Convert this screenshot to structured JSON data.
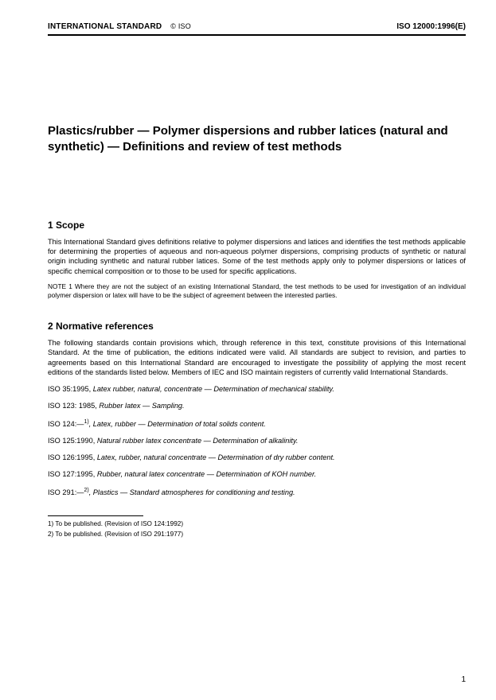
{
  "header": {
    "left": "INTERNATIONAL STANDARD",
    "copyright": "© ISO",
    "right": "ISO 12000:1996(E)"
  },
  "title": "Plastics/rubber — Polymer dispersions and rubber latices (natural and synthetic) — Definitions and review of test methods",
  "sections": {
    "scope": {
      "heading": "1   Scope",
      "para": "This International Standard gives definitions relative to polymer dispersions and latices and identifies the test methods applicable for determining the properties of aqueous and non-aqueous polymer dispersions, comprising products of synthetic or natural origin including synthetic and natural rubber latices. Some of the test methods apply only to polymer dispersions or latices of specific chemical composition or to those to be used for specific applications.",
      "note": "NOTE 1   Where they are not the subject of an existing International Standard, the test methods to be used for investigation of an individual polymer dispersion or latex will have to be the subject of agreement between the interested parties."
    },
    "normrefs": {
      "heading": "2   Normative references",
      "para": "The following standards contain provisions which, through reference in this text, constitute provisions of this International Standard. At the time of publication, the editions indicated were valid. All standards are subject to revision, and parties to agreements based on this International Standard are encouraged to investigate the possibility of applying the most recent editions of the standards listed below. Members of IEC and ISO maintain registers of currently valid International Standards.",
      "items": [
        {
          "code": "ISO 35:1995, ",
          "title": "Latex rubber, natural, concentrate — Determination of mechanical stability.",
          "sup": ""
        },
        {
          "code": "ISO 123: 1985, ",
          "title": "Rubber latex — Sampling.",
          "sup": ""
        },
        {
          "code": "ISO 124:—",
          "title": ", Latex, rubber — Determination of total solids content.",
          "sup": "1)"
        },
        {
          "code": "ISO 125:1990, ",
          "title": "Natural rubber latex concentrate — Determination of alkalinity.",
          "sup": ""
        },
        {
          "code": "ISO 126:1995, ",
          "title": "Latex, rubber, natural concentrate — Determination of dry rubber content.",
          "sup": ""
        },
        {
          "code": "ISO 127:1995, ",
          "title": "Rubber, natural latex concentrate — Determination of KOH number.",
          "sup": ""
        },
        {
          "code": "ISO 291:—",
          "title": ", Plastics — Standard atmospheres for conditioning and testing.",
          "sup": "2)"
        }
      ]
    }
  },
  "footnotes": [
    "1)  To be published. (Revision of ISO 124:1992)",
    "2)  To be published. (Revision of ISO 291:1977)"
  ],
  "pageNumber": "1"
}
